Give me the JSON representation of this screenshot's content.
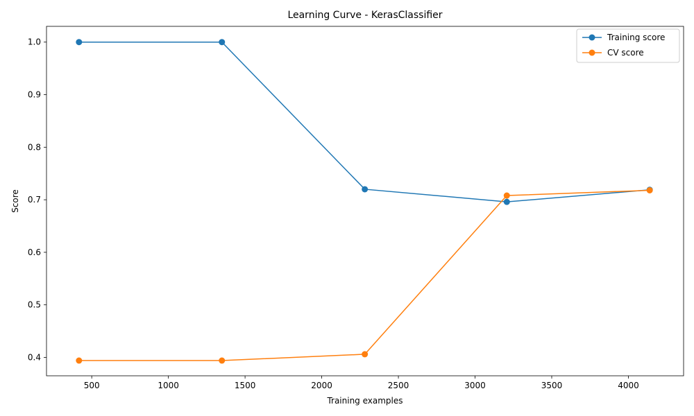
{
  "chart_data": {
    "type": "line",
    "title": "Learning Curve - KerasClassifier",
    "xlabel": "Training examples",
    "ylabel": "Score",
    "xlim": [
      205,
      4360
    ],
    "ylim": [
      0.365,
      1.03
    ],
    "xticks": [
      500,
      1000,
      1500,
      2000,
      2500,
      3000,
      3500,
      4000
    ],
    "xtick_labels": [
      "500",
      "1000",
      "1500",
      "2000",
      "2500",
      "3000",
      "3500",
      "4000"
    ],
    "yticks": [
      0.4,
      0.5,
      0.6,
      0.7,
      0.8,
      0.9,
      1.0
    ],
    "ytick_labels": [
      "0.4",
      "0.5",
      "0.6",
      "0.7",
      "0.8",
      "0.9",
      "1.0"
    ],
    "grid": false,
    "legend_position": "top-right",
    "x": [
      417,
      1349,
      2281,
      3207,
      4139
    ],
    "series": [
      {
        "name": "Training score",
        "color": "#1f77b4",
        "marker": "circle",
        "values": [
          1.0,
          1.0,
          0.72,
          0.696,
          0.719
        ]
      },
      {
        "name": "CV score",
        "color": "#ff7f0e",
        "marker": "circle",
        "values": [
          0.394,
          0.394,
          0.406,
          0.708,
          0.718
        ]
      }
    ]
  }
}
